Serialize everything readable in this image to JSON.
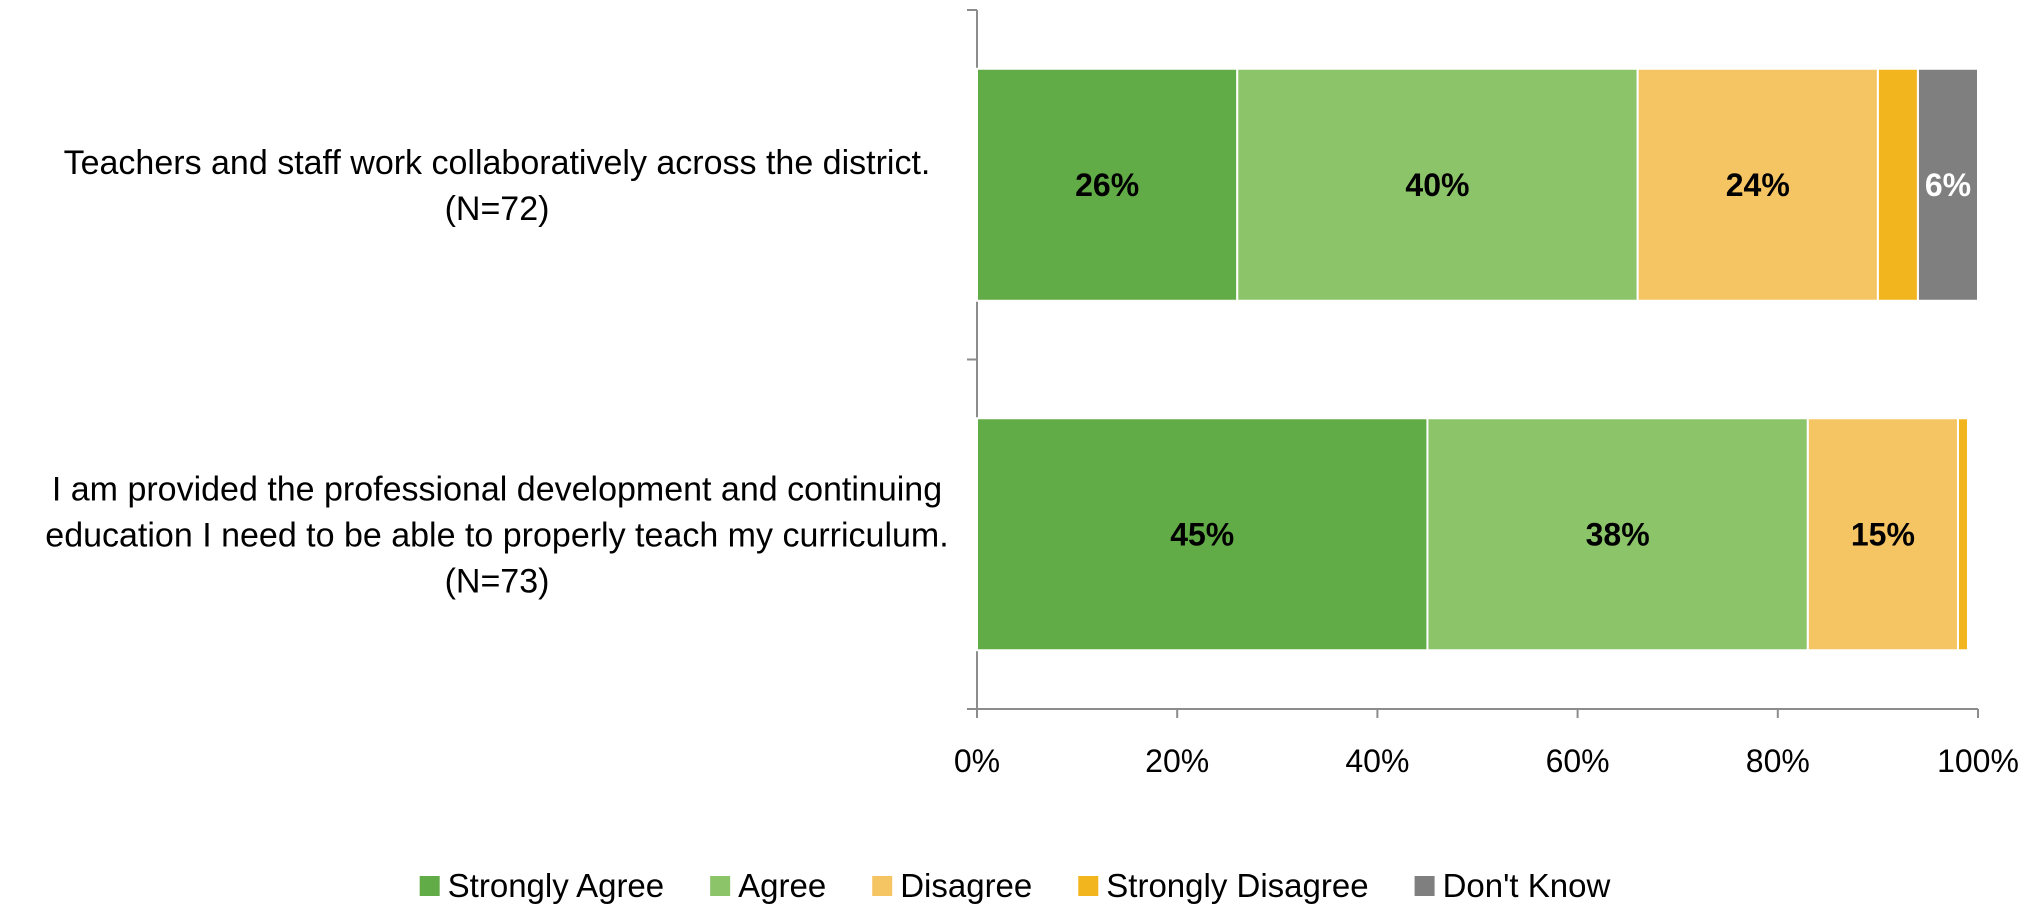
{
  "chart_data": {
    "type": "bar",
    "orientation": "horizontal",
    "stacked": true,
    "percent_stacked": true,
    "categories": [
      {
        "lines": [
          "Teachers and staff work collaboratively across the district.",
          "(N=72)"
        ]
      },
      {
        "lines": [
          "I am provided the professional development and continuing",
          "education I need to be able to properly teach my curriculum.",
          "(N=73)"
        ]
      }
    ],
    "series": [
      {
        "name": "Strongly Agree",
        "color": "#62AC47",
        "label_color": "#000000",
        "values": [
          26,
          45
        ],
        "labels": [
          "26%",
          "45%"
        ]
      },
      {
        "name": "Agree",
        "color": "#8CC46A",
        "label_color": "#000000",
        "values": [
          40,
          38
        ],
        "labels": [
          "40%",
          "38%"
        ]
      },
      {
        "name": "Disagree",
        "color": "#F6C563",
        "label_color": "#000000",
        "values": [
          24,
          15
        ],
        "labels": [
          "24%",
          "15%"
        ]
      },
      {
        "name": "Strongly Disagree",
        "color": "#F2B51E",
        "label_color": "#000000",
        "values": [
          4,
          1
        ],
        "labels": [
          "",
          ""
        ]
      },
      {
        "name": "Don't Know",
        "color": "#7F7F7F",
        "label_color": "#ffffff",
        "values": [
          6,
          0
        ],
        "labels": [
          "6%",
          ""
        ]
      }
    ],
    "x_axis": {
      "min": 0,
      "max": 100,
      "ticks": [
        "0%",
        "20%",
        "40%",
        "60%",
        "80%",
        "100%"
      ]
    },
    "title": "",
    "xlabel": "",
    "ylabel": "",
    "grid": false,
    "legend_position": "bottom"
  }
}
